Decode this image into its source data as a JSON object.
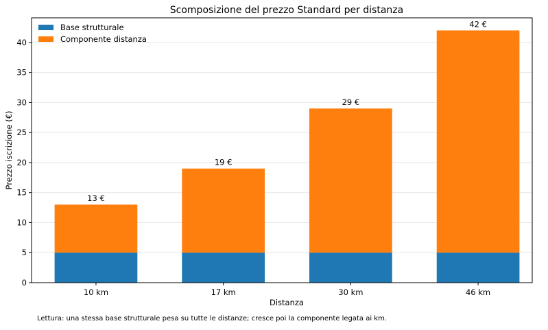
{
  "chart_data": {
    "type": "bar",
    "stacked": true,
    "title": "Scomposizione del prezzo Standard per distanza",
    "xlabel": "Distanza",
    "ylabel": "Prezzo iscrizione (€)",
    "categories": [
      "10 km",
      "17 km",
      "30 km",
      "46 km"
    ],
    "series": [
      {
        "name": "Base strutturale",
        "values": [
          5,
          5,
          5,
          5
        ],
        "color": "#1f77b4"
      },
      {
        "name": "Componente distanza",
        "values": [
          8,
          14,
          24,
          37
        ],
        "color": "#ff7f0e"
      }
    ],
    "totals_labels": [
      "13 €",
      "19 €",
      "29 €",
      "42 €"
    ],
    "ylim": [
      0,
      44.1
    ],
    "xlim": [
      -0.506,
      3.425
    ],
    "yticks": [
      0,
      5,
      10,
      15,
      20,
      25,
      30,
      35,
      40
    ],
    "grid": "y",
    "legend_position": "top-left",
    "note": "Lettura: una stessa base strutturale pesa su tutte le distanze; cresce poi la componente legata ai km."
  }
}
